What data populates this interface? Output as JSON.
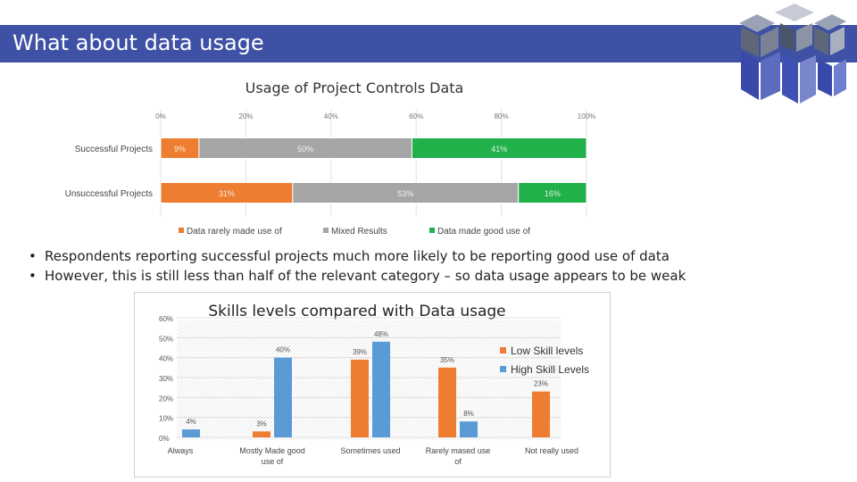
{
  "slide": {
    "title": "What about data usage",
    "logo_icon": "cube-logo-icon",
    "header_color": "#3f51a5"
  },
  "chart_data": [
    {
      "type": "bar",
      "orientation": "horizontal",
      "stacked": true,
      "title": "Usage of Project Controls Data",
      "categories": [
        "Successful Projects",
        "Unsuccessful Projects"
      ],
      "x_ticks": [
        "0%",
        "20%",
        "40%",
        "60%",
        "80%",
        "100%"
      ],
      "xlim": [
        0,
        100
      ],
      "series": [
        {
          "name": "Data rarely made use of",
          "values": [
            9,
            31
          ],
          "labels": [
            "9%",
            "31%"
          ],
          "color": "#ed7d31"
        },
        {
          "name": "Mixed Results",
          "values": [
            50,
            53
          ],
          "labels": [
            "50%",
            "53%"
          ],
          "color": "#a5a5a5"
        },
        {
          "name": "Data made good use of",
          "values": [
            41,
            16
          ],
          "labels": [
            "41%",
            "16%"
          ],
          "color": "#22b04b"
        }
      ],
      "legend": "bottom",
      "grid": true
    },
    {
      "type": "bar",
      "title": "Skills levels compared with Data usage",
      "categories": [
        "Always",
        "Mostly Made good use of",
        "Sometimes used",
        "Rarely mased use of",
        "Not really used"
      ],
      "y_ticks": [
        "0%",
        "10%",
        "20%",
        "30%",
        "40%",
        "50%",
        "60%"
      ],
      "ylim": [
        0,
        60
      ],
      "series": [
        {
          "name": "Low Skill levels",
          "values": [
            0,
            3,
            39,
            35,
            23
          ],
          "labels": [
            "",
            "3%",
            "39%",
            "35%",
            "23%"
          ],
          "color": "#ed7d31"
        },
        {
          "name": "High Skill Levels",
          "values": [
            4,
            40,
            48,
            8,
            0
          ],
          "labels": [
            "4%",
            "40%",
            "48%",
            "8%",
            ""
          ],
          "color": "#5b9bd5"
        }
      ],
      "legend": "right",
      "grid": true
    }
  ],
  "bullets": [
    "Respondents reporting successful projects much more likely to be reporting good use of data",
    "However, this is still less than half of the relevant category – so data usage appears to be weak"
  ]
}
